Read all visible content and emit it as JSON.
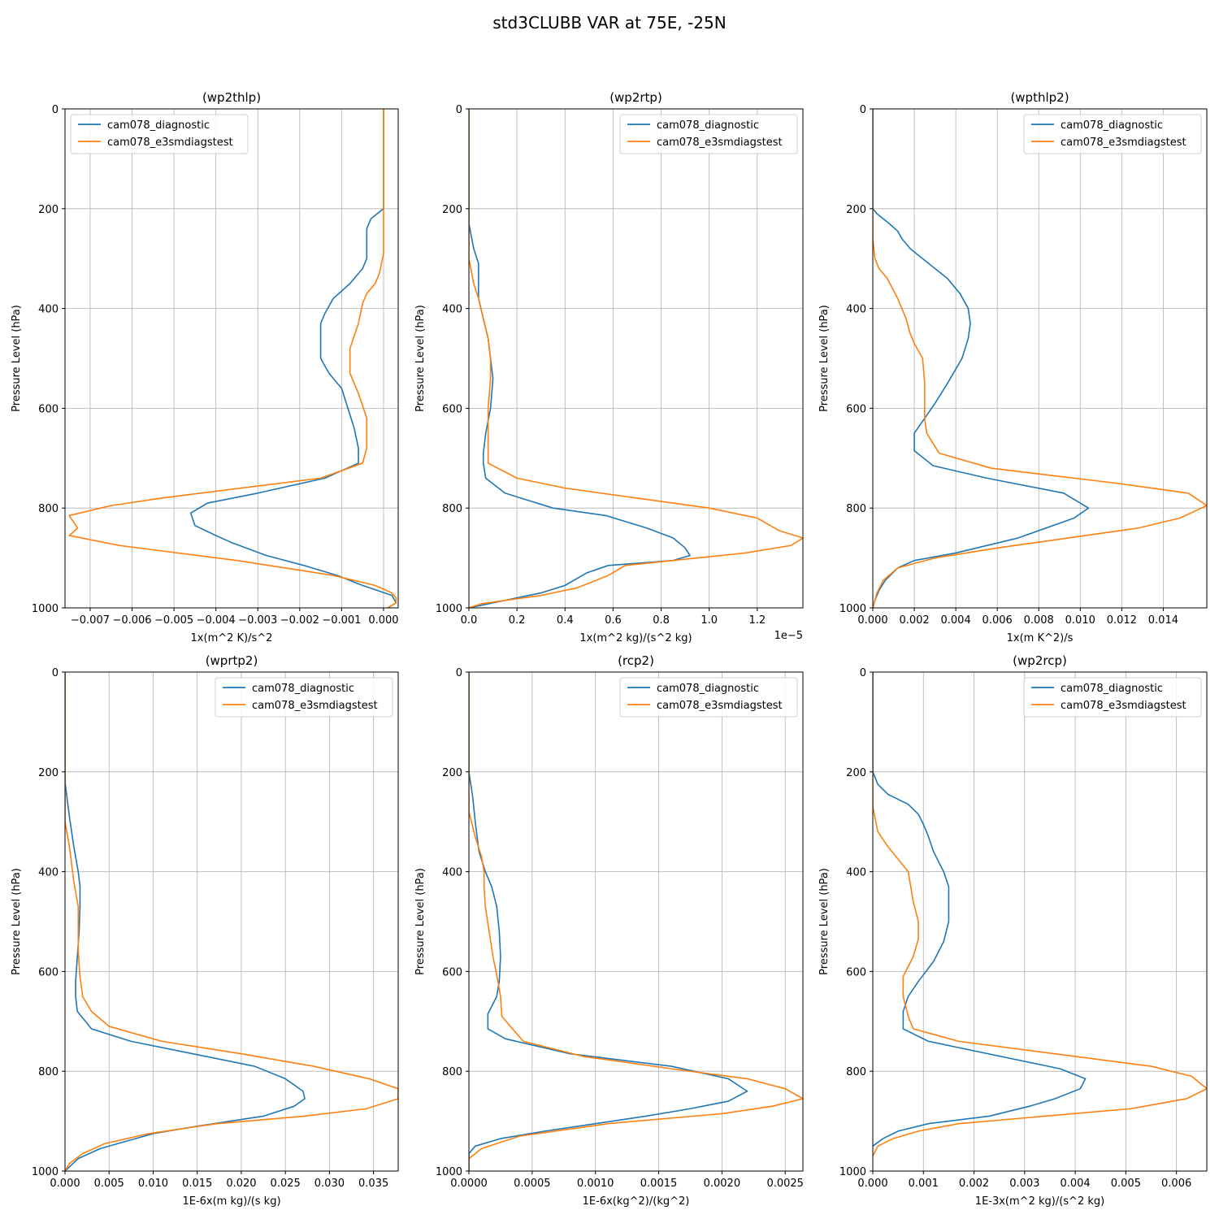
{
  "figure": {
    "suptitle": "std3CLUBB VAR at 75E, -25N"
  },
  "chart_data": [
    {
      "type": "line",
      "title": "(wp2thlp)",
      "xlabel": "1x(m^2 K)/s^2",
      "ylabel": "Pressure Level (hPa)",
      "offset_text": "",
      "xlim": [
        -0.0076,
        0.00035
      ],
      "ylim": [
        1000,
        0
      ],
      "xticks": [
        -0.007,
        -0.006,
        -0.005,
        -0.004,
        -0.003,
        -0.002,
        -0.001,
        0.0
      ],
      "xtick_labels": [
        "−0.007",
        "−0.006",
        "−0.005",
        "−0.004",
        "−0.003",
        "−0.002",
        "−0.001",
        "0.000"
      ],
      "yticks": [
        0,
        200,
        400,
        600,
        800,
        1000
      ],
      "ytick_labels": [
        "0",
        "200",
        "400",
        "600",
        "800",
        "1000"
      ],
      "legend": "upper left",
      "grid": true,
      "series": [
        {
          "name": "cam078_diagnostic",
          "color": "#1f77b4",
          "x": [
            0,
            0,
            0,
            -0.0003,
            -0.0004,
            -0.0004,
            -0.0004,
            -0.0005,
            -0.0008,
            -0.0012,
            -0.0014,
            -0.0015,
            -0.0015,
            -0.0015,
            -0.0013,
            -0.001,
            -0.0007,
            -0.0006,
            -0.0006,
            -0.0014,
            -0.003,
            -0.0042,
            -0.0046,
            -0.0045,
            -0.004,
            -0.0036,
            -0.0028,
            -0.0019,
            -0.0011,
            -0.0005,
            0.0002,
            0.0003,
            0.0001
          ],
          "y": [
            0,
            100,
            200,
            220,
            240,
            270,
            300,
            320,
            350,
            380,
            410,
            430,
            460,
            500,
            530,
            560,
            640,
            680,
            710,
            740,
            770,
            790,
            810,
            835,
            855,
            870,
            895,
            915,
            935,
            955,
            975,
            990,
            1000
          ]
        },
        {
          "name": "cam078_e3smdiagstest",
          "color": "#ff7f0e",
          "x": [
            0,
            0,
            0,
            0,
            -0.0001,
            -0.0002,
            -0.0004,
            -0.0005,
            -0.0006,
            -0.0008,
            -0.0008,
            -0.0006,
            -0.0004,
            -0.0004,
            -0.0005,
            -0.0015,
            -0.0053,
            -0.0065,
            -0.0075,
            -0.0073,
            -0.0075,
            -0.0063,
            -0.0035,
            -0.0012,
            -0.0002,
            0.0002,
            0.0003,
            0.0003,
            0.0002,
            0.0001
          ],
          "y": [
            0,
            100,
            200,
            290,
            330,
            350,
            370,
            390,
            430,
            480,
            530,
            570,
            620,
            680,
            710,
            740,
            780,
            795,
            815,
            840,
            855,
            875,
            905,
            935,
            955,
            970,
            980,
            990,
            995,
            1000
          ]
        }
      ]
    },
    {
      "type": "line",
      "title": "(wp2rtp)",
      "xlabel": "1x(m^2 kg)/(s^2 kg)",
      "ylabel": "Pressure Level (hPa)",
      "offset_text": "1e−5",
      "xlim": [
        0,
        1.39
      ],
      "ylim": [
        1000,
        0
      ],
      "xticks": [
        0.0,
        0.2,
        0.4,
        0.6,
        0.8,
        1.0,
        1.2
      ],
      "xtick_labels": [
        "0.0",
        "0.2",
        "0.4",
        "0.6",
        "0.8",
        "1.0",
        "1.2"
      ],
      "yticks": [
        0,
        200,
        400,
        600,
        800,
        1000
      ],
      "ytick_labels": [
        "0",
        "200",
        "400",
        "600",
        "800",
        "1000"
      ],
      "legend": "upper right",
      "grid": true,
      "series": [
        {
          "name": "cam078_diagnostic",
          "color": "#1f77b4",
          "x": [
            0.0,
            0.0,
            0.0,
            0.02,
            0.04,
            0.04,
            0.04,
            0.06,
            0.08,
            0.09,
            0.1,
            0.09,
            0.07,
            0.06,
            0.06,
            0.07,
            0.15,
            0.35,
            0.57,
            0.74,
            0.85,
            0.9,
            0.92,
            0.85,
            0.58,
            0.49,
            0.4,
            0.3,
            0.2,
            0.1,
            0.0
          ],
          "y": [
            0,
            100,
            230,
            280,
            310,
            350,
            380,
            420,
            460,
            500,
            540,
            600,
            650,
            690,
            710,
            740,
            770,
            800,
            815,
            840,
            860,
            880,
            895,
            905,
            915,
            930,
            955,
            970,
            980,
            990,
            1000
          ]
        },
        {
          "name": "cam078_e3smdiagstest",
          "color": "#ff7f0e",
          "x": [
            0.0,
            0.0,
            0.0,
            0.02,
            0.04,
            0.06,
            0.08,
            0.09,
            0.09,
            0.08,
            0.08,
            0.08,
            0.2,
            0.4,
            0.7,
            1.0,
            1.2,
            1.29,
            1.39,
            1.34,
            1.15,
            0.95,
            0.65,
            0.58,
            0.45,
            0.3,
            0.15,
            0.05,
            0.0
          ],
          "y": [
            0,
            200,
            300,
            350,
            380,
            420,
            460,
            500,
            540,
            600,
            650,
            710,
            740,
            760,
            780,
            800,
            820,
            845,
            860,
            875,
            890,
            900,
            915,
            935,
            960,
            975,
            985,
            992,
            1000
          ]
        }
      ]
    },
    {
      "type": "line",
      "title": "(wpthlp2)",
      "xlabel": "1x(m K^2)/s",
      "ylabel": "Pressure Level (hPa)",
      "offset_text": "",
      "xlim": [
        0,
        0.0161
      ],
      "ylim": [
        1000,
        0
      ],
      "xticks": [
        0.0,
        0.002,
        0.004,
        0.006,
        0.008,
        0.01,
        0.012,
        0.014
      ],
      "xtick_labels": [
        "0.000",
        "0.002",
        "0.004",
        "0.006",
        "0.008",
        "0.010",
        "0.012",
        "0.014"
      ],
      "yticks": [
        0,
        200,
        400,
        600,
        800,
        1000
      ],
      "ytick_labels": [
        "0",
        "200",
        "400",
        "600",
        "800",
        "1000"
      ],
      "legend": "upper right",
      "grid": true,
      "series": [
        {
          "name": "cam078_diagnostic",
          "color": "#1f77b4",
          "x": [
            0.0,
            0.0,
            0.0002,
            0.0008,
            0.0012,
            0.0014,
            0.0018,
            0.0024,
            0.003,
            0.0036,
            0.0042,
            0.0046,
            0.0047,
            0.0046,
            0.0043,
            0.0036,
            0.003,
            0.0025,
            0.002,
            0.002,
            0.002,
            0.0029,
            0.0055,
            0.0092,
            0.0104,
            0.0097,
            0.007,
            0.004,
            0.002,
            0.0012,
            0.0006,
            0.0003,
            0.0001,
            0.0
          ],
          "y": [
            0,
            200,
            210,
            230,
            245,
            260,
            280,
            300,
            320,
            340,
            370,
            400,
            430,
            460,
            500,
            550,
            590,
            620,
            650,
            680,
            685,
            715,
            740,
            770,
            800,
            820,
            860,
            890,
            905,
            920,
            945,
            965,
            985,
            1000
          ]
        },
        {
          "name": "cam078_e3smdiagstest",
          "color": "#ff7f0e",
          "x": [
            0.0,
            0.0,
            0.0001,
            0.0003,
            0.0007,
            0.0012,
            0.0016,
            0.0018,
            0.002,
            0.0024,
            0.0025,
            0.0025,
            0.0025,
            0.0026,
            0.0032,
            0.0057,
            0.0117,
            0.0152,
            0.0161,
            0.0148,
            0.0128,
            0.0094,
            0.006,
            0.003,
            0.0012,
            0.0005,
            0.0002,
            0.0
          ],
          "y": [
            0,
            260,
            300,
            320,
            340,
            380,
            420,
            450,
            470,
            500,
            550,
            600,
            620,
            650,
            690,
            720,
            750,
            770,
            795,
            820,
            840,
            860,
            880,
            900,
            920,
            945,
            970,
            1000
          ]
        }
      ]
    },
    {
      "type": "line",
      "title": "(wprtp2)",
      "xlabel": "1E-6x(m kg)/(s kg)",
      "ylabel": "Pressure Level (hPa)",
      "offset_text": "",
      "xlim": [
        0,
        0.0378
      ],
      "ylim": [
        1000,
        0
      ],
      "xticks": [
        0.0,
        0.005,
        0.01,
        0.015,
        0.02,
        0.025,
        0.03,
        0.035
      ],
      "xtick_labels": [
        "0.000",
        "0.005",
        "0.010",
        "0.015",
        "0.020",
        "0.025",
        "0.030",
        "0.035"
      ],
      "yticks": [
        0,
        200,
        400,
        600,
        800,
        1000
      ],
      "ytick_labels": [
        "0",
        "200",
        "400",
        "600",
        "800",
        "1000"
      ],
      "legend": "upper right",
      "grid": true,
      "series": [
        {
          "name": "cam078_diagnostic",
          "color": "#1f77b4",
          "x": [
            0.0,
            0.0,
            0.0005,
            0.001,
            0.0015,
            0.0017,
            0.0017,
            0.0016,
            0.0014,
            0.0012,
            0.0012,
            0.0014,
            0.003,
            0.0075,
            0.0145,
            0.0215,
            0.025,
            0.027,
            0.0272,
            0.026,
            0.0225,
            0.015,
            0.01,
            0.007,
            0.004,
            0.0015,
            0.0
          ],
          "y": [
            0,
            220,
            290,
            350,
            400,
            430,
            470,
            520,
            570,
            620,
            650,
            680,
            715,
            740,
            765,
            790,
            815,
            840,
            855,
            870,
            890,
            910,
            925,
            940,
            955,
            975,
            1000
          ]
        },
        {
          "name": "cam078_e3smdiagstest",
          "color": "#ff7f0e",
          "x": [
            0.0,
            0.0,
            0.0005,
            0.001,
            0.0015,
            0.0015,
            0.0015,
            0.0017,
            0.002,
            0.003,
            0.005,
            0.011,
            0.02,
            0.0282,
            0.0345,
            0.0378,
            0.0378,
            0.0342,
            0.0272,
            0.0172,
            0.0095,
            0.0045,
            0.002,
            0.0005,
            0.0
          ],
          "y": [
            0,
            300,
            350,
            420,
            470,
            520,
            560,
            610,
            650,
            680,
            710,
            740,
            765,
            790,
            815,
            835,
            855,
            875,
            890,
            905,
            925,
            945,
            965,
            985,
            1000
          ]
        }
      ]
    },
    {
      "type": "line",
      "title": "(rcp2)",
      "xlabel": "1E-6x(kg^2)/(kg^2)",
      "ylabel": "Pressure Level (hPa)",
      "offset_text": "",
      "xlim": [
        0,
        0.00264
      ],
      "ylim": [
        1000,
        0
      ],
      "xticks": [
        0.0,
        0.0005,
        0.001,
        0.0015,
        0.002,
        0.0025
      ],
      "xtick_labels": [
        "0.0000",
        "0.0005",
        "0.0010",
        "0.0015",
        "0.0020",
        "0.0025"
      ],
      "yticks": [
        0,
        200,
        400,
        600,
        800,
        1000
      ],
      "ytick_labels": [
        "0",
        "200",
        "400",
        "600",
        "800",
        "1000"
      ],
      "legend": "upper right",
      "grid": true,
      "series": [
        {
          "name": "cam078_diagnostic",
          "color": "#1f77b4",
          "x": [
            0.0,
            0.0,
            3e-05,
            5e-05,
            8e-05,
            0.00013,
            0.00018,
            0.00022,
            0.00024,
            0.00025,
            0.00024,
            0.00022,
            0.00018,
            0.00015,
            0.00015,
            0.00029,
            0.0008,
            0.0016,
            0.00205,
            0.0022,
            0.00205,
            0.00175,
            0.0014,
            0.001,
            0.0006,
            0.00025,
            5e-05,
            0.0,
            0.0
          ],
          "y": [
            0,
            200,
            250,
            300,
            360,
            400,
            430,
            470,
            520,
            570,
            620,
            650,
            670,
            685,
            715,
            735,
            765,
            790,
            815,
            840,
            860,
            875,
            890,
            905,
            920,
            935,
            950,
            965,
            1000
          ]
        },
        {
          "name": "cam078_e3smdiagstest",
          "color": "#ff7f0e",
          "x": [
            0.0,
            0.0,
            5e-05,
            0.0001,
            0.00012,
            0.00012,
            0.00013,
            0.00016,
            0.00019,
            0.00023,
            0.00025,
            0.00026,
            0.00043,
            0.0009,
            0.0016,
            0.0022,
            0.0025,
            0.00264,
            0.0024,
            0.002,
            0.0011,
            0.0004,
            0.0001,
            0.0,
            0.0
          ],
          "y": [
            0,
            280,
            330,
            370,
            400,
            430,
            470,
            520,
            570,
            620,
            650,
            690,
            740,
            770,
            795,
            815,
            835,
            855,
            870,
            885,
            905,
            930,
            955,
            975,
            1000
          ]
        }
      ]
    },
    {
      "type": "line",
      "title": "(wp2rcp)",
      "xlabel": "1E-3x(m^2 kg)/(s^2 kg)",
      "ylabel": "Pressure Level (hPa)",
      "offset_text": "",
      "xlim": [
        0,
        0.0066
      ],
      "ylim": [
        1000,
        0
      ],
      "xticks": [
        0.0,
        0.001,
        0.002,
        0.003,
        0.004,
        0.005,
        0.006
      ],
      "xtick_labels": [
        "0.000",
        "0.001",
        "0.002",
        "0.003",
        "0.004",
        "0.005",
        "0.006"
      ],
      "yticks": [
        0,
        200,
        400,
        600,
        800,
        1000
      ],
      "ytick_labels": [
        "0",
        "200",
        "400",
        "600",
        "800",
        "1000"
      ],
      "legend": "upper right",
      "grid": true,
      "series": [
        {
          "name": "cam078_diagnostic",
          "color": "#1f77b4",
          "x": [
            0.0,
            0.0,
            0.0001,
            0.0003,
            0.0007,
            0.0009,
            0.001,
            0.0011,
            0.0012,
            0.0014,
            0.0015,
            0.0015,
            0.0015,
            0.0014,
            0.0012,
            0.0009,
            0.0007,
            0.0006,
            0.0006,
            0.0006,
            0.0011,
            0.0037,
            0.0042,
            0.0041,
            0.0036,
            0.0031,
            0.0023,
            0.0011,
            0.0005,
            0.0002,
            0.0
          ],
          "y": [
            0,
            200,
            225,
            245,
            265,
            285,
            305,
            330,
            360,
            400,
            430,
            470,
            500,
            540,
            580,
            620,
            650,
            680,
            700,
            715,
            740,
            795,
            815,
            835,
            855,
            870,
            890,
            905,
            920,
            935,
            950
          ]
        },
        {
          "name": "cam078_e3smdiagstest",
          "color": "#ff7f0e",
          "x": [
            0.0,
            0.0,
            0.0001,
            0.0003,
            0.0005,
            0.0007,
            0.0008,
            0.0009,
            0.0009,
            0.0008,
            0.0006,
            0.0006,
            0.0007,
            0.0008,
            0.0017,
            0.0055,
            0.0063,
            0.0066,
            0.0062,
            0.0051,
            0.0034,
            0.0017,
            0.0009,
            0.0004,
            0.0001,
            0.0
          ],
          "y": [
            0,
            270,
            320,
            350,
            375,
            400,
            460,
            500,
            535,
            570,
            610,
            650,
            690,
            715,
            740,
            790,
            810,
            835,
            855,
            875,
            890,
            905,
            920,
            935,
            950,
            970
          ]
        }
      ]
    }
  ]
}
